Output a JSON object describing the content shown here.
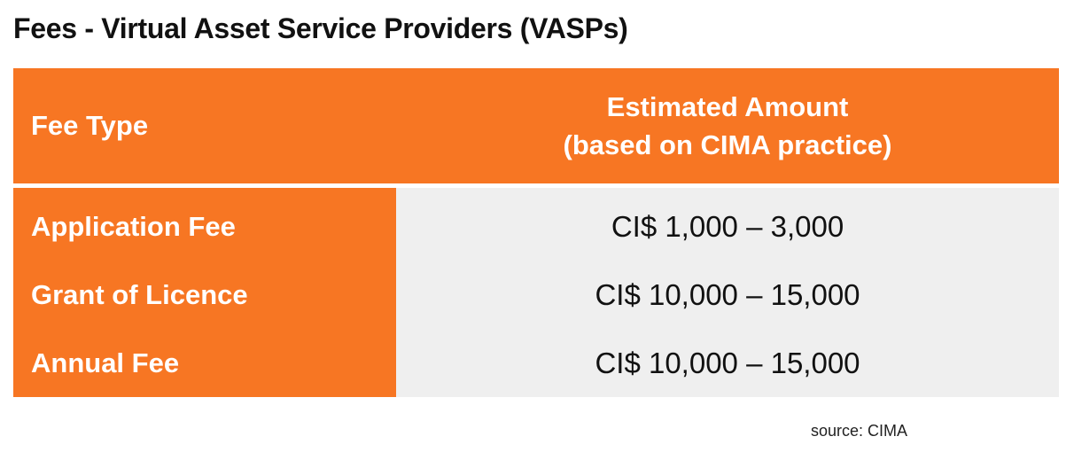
{
  "title": "Fees - Virtual Asset Service Providers (VASPs)",
  "table": {
    "header": {
      "fee_type": "Fee Type",
      "amount_line1": "Estimated Amount",
      "amount_line2": "(based on CIMA practice)"
    },
    "rows": [
      {
        "fee_type": "Application Fee",
        "amount": "CI$ 1,000 – 3,000"
      },
      {
        "fee_type": "Grant of Licence",
        "amount": "CI$ 10,000 – 15,000"
      },
      {
        "fee_type": "Annual Fee",
        "amount": "CI$ 10,000 – 15,000"
      }
    ]
  },
  "source": "source: CIMA",
  "colors": {
    "accent": "#f77623",
    "row_background": "#efefef"
  }
}
